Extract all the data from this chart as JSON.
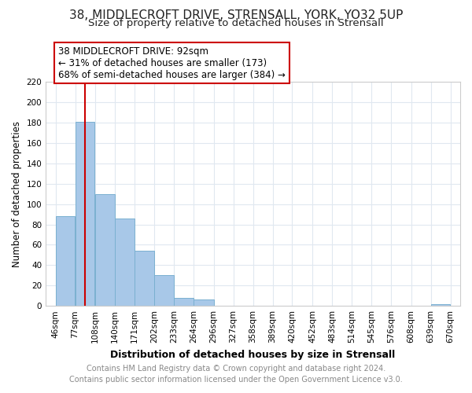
{
  "title1": "38, MIDDLECROFT DRIVE, STRENSALL, YORK, YO32 5UP",
  "title2": "Size of property relative to detached houses in Strensall",
  "xlabel": "Distribution of detached houses by size in Strensall",
  "ylabel": "Number of detached properties",
  "bar_edges": [
    46,
    77,
    108,
    140,
    171,
    202,
    233,
    264,
    296,
    327,
    358,
    389,
    420,
    452,
    483,
    514,
    545,
    576,
    608,
    639,
    670
  ],
  "bar_heights": [
    88,
    181,
    110,
    86,
    54,
    30,
    8,
    6,
    0,
    0,
    0,
    0,
    0,
    0,
    0,
    0,
    0,
    0,
    0,
    2
  ],
  "bar_color": "#a8c8e8",
  "bar_edge_color": "#7ab0d0",
  "vline_x": 92,
  "vline_color": "#cc0000",
  "ylim": [
    0,
    220
  ],
  "yticks": [
    0,
    20,
    40,
    60,
    80,
    100,
    120,
    140,
    160,
    180,
    200,
    220
  ],
  "xtick_labels": [
    "46sqm",
    "77sqm",
    "108sqm",
    "140sqm",
    "171sqm",
    "202sqm",
    "233sqm",
    "264sqm",
    "296sqm",
    "327sqm",
    "358sqm",
    "389sqm",
    "420sqm",
    "452sqm",
    "483sqm",
    "514sqm",
    "545sqm",
    "576sqm",
    "608sqm",
    "639sqm",
    "670sqm"
  ],
  "annotation_title": "38 MIDDLECROFT DRIVE: 92sqm",
  "annotation_line1": "← 31% of detached houses are smaller (173)",
  "annotation_line2": "68% of semi-detached houses are larger (384) →",
  "footer1": "Contains HM Land Registry data © Crown copyright and database right 2024.",
  "footer2": "Contains public sector information licensed under the Open Government Licence v3.0.",
  "background_color": "#ffffff",
  "grid_color": "#e0e8f0",
  "title1_fontsize": 11,
  "title2_fontsize": 9.5,
  "xlabel_fontsize": 9,
  "ylabel_fontsize": 8.5,
  "tick_fontsize": 7.5,
  "annotation_fontsize": 8.5,
  "footer_fontsize": 7
}
